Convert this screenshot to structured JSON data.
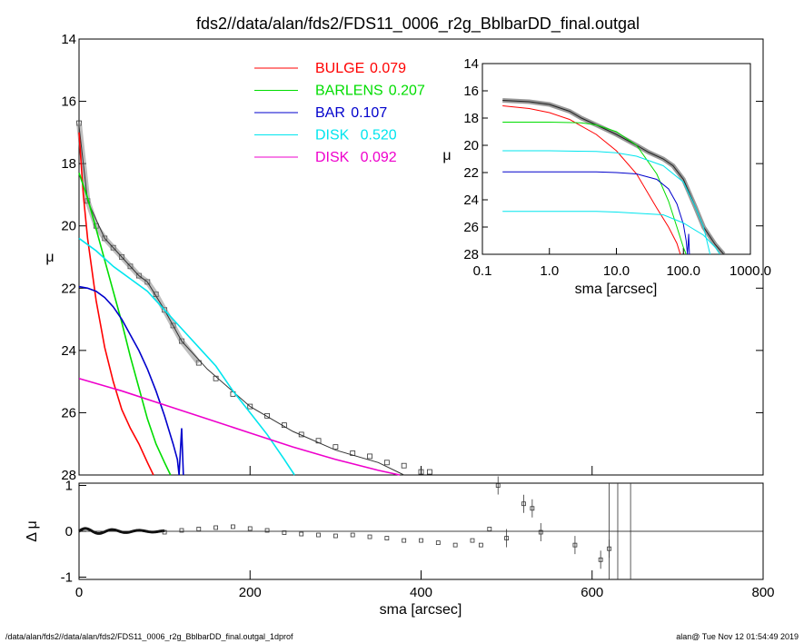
{
  "title": "fds2//data/alan/fds2/FDS11_0006_r2g_BblbarDD_final.outgal",
  "footer_left": "/data/alan/fds2//data/alan/fds2/FDS11_0006_r2g_BblbarDD_final.outgal_1dprof",
  "footer_right": "alan@  Tue Nov 12 01:54:49 2019",
  "colors": {
    "bulge": "#ff0000",
    "barlens": "#00dd00",
    "bar": "#0000cc",
    "disk1": "#00e5ee",
    "disk2": "#ee00cc",
    "data": "#555555"
  },
  "legend": [
    {
      "name": "BULGE",
      "value": "0.079",
      "color": "#ff0000"
    },
    {
      "name": "BARLENS",
      "value": "0.207",
      "color": "#00dd00"
    },
    {
      "name": "BAR",
      "value": "0.107",
      "color": "#0000cc"
    },
    {
      "name": "DISK",
      "value": "0.520",
      "color": "#00e5ee"
    },
    {
      "name": "DISK",
      "value": "0.092",
      "color": "#ee00cc"
    }
  ],
  "chart_data": [
    {
      "type": "line",
      "panel": "main",
      "xlabel": "",
      "ylabel": "μ",
      "xlim": [
        0,
        800
      ],
      "ylim": [
        28,
        14
      ],
      "yticks": [
        "14",
        "16",
        "18",
        "20",
        "22",
        "24",
        "26",
        "28"
      ],
      "series": [
        {
          "name": "data",
          "style": "points",
          "x": [
            0,
            10,
            20,
            30,
            40,
            50,
            60,
            70,
            80,
            90,
            100,
            110,
            120,
            140,
            160,
            180,
            200,
            220,
            240,
            260,
            280,
            300,
            320,
            340,
            360,
            380,
            400,
            410
          ],
          "y": [
            16.7,
            19.2,
            20.0,
            20.4,
            20.7,
            21.0,
            21.3,
            21.6,
            21.8,
            22.2,
            22.7,
            23.2,
            23.7,
            24.4,
            24.9,
            25.4,
            25.8,
            26.1,
            26.4,
            26.7,
            26.9,
            27.1,
            27.3,
            27.4,
            27.6,
            27.7,
            27.9,
            27.9
          ]
        },
        {
          "name": "model",
          "x": [
            0,
            10,
            30,
            50,
            70,
            80,
            100,
            120,
            150,
            200,
            250,
            300,
            350,
            380
          ],
          "y": [
            16.8,
            19.2,
            20.4,
            21.0,
            21.6,
            21.8,
            22.7,
            23.7,
            24.6,
            25.8,
            26.6,
            27.2,
            27.6,
            28.0
          ]
        },
        {
          "name": "BULGE",
          "x": [
            0,
            5,
            10,
            20,
            30,
            40,
            50,
            60,
            70,
            80,
            87
          ],
          "y": [
            17.0,
            19.0,
            20.4,
            22.4,
            23.9,
            25.0,
            25.9,
            26.5,
            27.0,
            27.6,
            28.0
          ]
        },
        {
          "name": "BARLENS",
          "x": [
            0,
            10,
            20,
            30,
            40,
            50,
            60,
            70,
            80,
            90,
            100,
            107
          ],
          "y": [
            18.3,
            19.1,
            20.1,
            21.1,
            22.1,
            23.1,
            24.2,
            25.2,
            26.2,
            27.0,
            27.6,
            28.0
          ]
        },
        {
          "name": "BAR",
          "x": [
            0,
            10,
            20,
            30,
            40,
            50,
            60,
            70,
            80,
            90,
            100,
            110,
            115,
            117,
            120,
            122
          ],
          "y": [
            21.95,
            22.0,
            22.1,
            22.3,
            22.6,
            23.0,
            23.5,
            24.0,
            24.6,
            25.3,
            26.1,
            27.0,
            27.5,
            28.0,
            26.5,
            28.0
          ]
        },
        {
          "name": "DISK",
          "x": [
            0,
            20,
            40,
            60,
            80,
            100,
            120,
            140,
            160,
            180,
            200,
            220,
            240,
            252
          ],
          "y": [
            20.4,
            20.8,
            21.3,
            21.7,
            22.1,
            22.7,
            23.3,
            23.9,
            24.5,
            25.3,
            26.0,
            26.7,
            27.5,
            28.0
          ]
        },
        {
          "name": "DISK",
          "x": [
            0,
            50,
            100,
            150,
            200,
            250,
            300,
            350,
            375
          ],
          "y": [
            24.9,
            25.3,
            25.75,
            26.2,
            26.65,
            27.1,
            27.5,
            27.85,
            28.0
          ]
        }
      ]
    },
    {
      "type": "scatter",
      "panel": "residual",
      "xlabel": "sma [arcsec]",
      "ylabel": "Δ μ",
      "xlim": [
        0,
        800
      ],
      "ylim": [
        -1.05,
        1.05
      ],
      "xticks": [
        "0",
        "200",
        "400",
        "600",
        "800"
      ],
      "yticks": [
        "-1",
        "0",
        "1"
      ],
      "x": [
        100,
        120,
        140,
        160,
        180,
        200,
        220,
        240,
        260,
        280,
        300,
        320,
        340,
        360,
        380,
        400,
        420,
        440,
        460,
        470,
        480,
        490,
        500,
        520,
        530,
        540,
        580,
        610,
        620
      ],
      "y": [
        -0.02,
        0.02,
        0.05,
        0.08,
        0.1,
        0.06,
        0.02,
        -0.03,
        -0.06,
        -0.08,
        -0.1,
        -0.08,
        -0.12,
        -0.15,
        -0.2,
        -0.2,
        -0.25,
        -0.3,
        -0.2,
        -0.3,
        0.05,
        1.0,
        -0.15,
        0.6,
        0.5,
        -0.02,
        -0.3,
        -0.62,
        -0.38
      ]
    },
    {
      "type": "line",
      "panel": "inset",
      "xlabel": "sma [arcsec]",
      "ylabel": "μ",
      "xscale": "log",
      "xlim": [
        0.1,
        1000
      ],
      "ylim": [
        28,
        14
      ],
      "xticks": [
        "0.1",
        "1.0",
        "10.0",
        "100.0",
        "1000.0"
      ],
      "yticks": [
        "14",
        "16",
        "18",
        "20",
        "22",
        "24",
        "26",
        "28"
      ],
      "series": [
        {
          "name": "data",
          "x": [
            0.2,
            0.5,
            1,
            2,
            3,
            5,
            10,
            20,
            30,
            50,
            70,
            100,
            150,
            200,
            300,
            400
          ],
          "y": [
            16.7,
            16.8,
            17.0,
            17.5,
            18.0,
            18.5,
            19.2,
            20.0,
            20.5,
            21.0,
            21.5,
            22.5,
            24.5,
            26.0,
            27.3,
            28.0
          ]
        },
        {
          "name": "BULGE",
          "x": [
            0.2,
            0.5,
            1,
            2,
            5,
            10,
            20,
            40,
            60,
            80,
            90
          ],
          "y": [
            17.1,
            17.3,
            17.6,
            18.1,
            19.2,
            20.4,
            22.1,
            24.6,
            26.0,
            27.2,
            28.0
          ]
        },
        {
          "name": "BARLENS",
          "x": [
            0.2,
            1,
            3,
            5,
            10,
            20,
            40,
            60,
            80,
            100,
            110
          ],
          "y": [
            18.3,
            18.3,
            18.35,
            18.5,
            19.0,
            20.0,
            22.1,
            24.1,
            26.0,
            27.5,
            28.0
          ]
        },
        {
          "name": "BAR",
          "x": [
            0.2,
            1,
            5,
            10,
            20,
            40,
            60,
            80,
            100,
            110,
            115,
            120,
            123
          ],
          "y": [
            21.95,
            21.95,
            21.95,
            22.0,
            22.1,
            22.5,
            23.2,
            24.3,
            25.8,
            27.0,
            28.0,
            26.5,
            28.0
          ]
        },
        {
          "name": "DISK",
          "x": [
            0.2,
            1,
            5,
            10,
            20,
            50,
            100,
            150,
            200,
            250
          ],
          "y": [
            20.4,
            20.4,
            20.45,
            20.55,
            20.8,
            21.5,
            22.7,
            24.5,
            26.0,
            28.0
          ]
        },
        {
          "name": "DISK",
          "x": [
            0.2,
            1,
            5,
            10,
            50,
            100,
            200,
            300,
            350
          ],
          "y": [
            24.85,
            24.85,
            24.85,
            24.9,
            25.1,
            25.7,
            26.6,
            27.5,
            28.0
          ]
        }
      ]
    }
  ]
}
